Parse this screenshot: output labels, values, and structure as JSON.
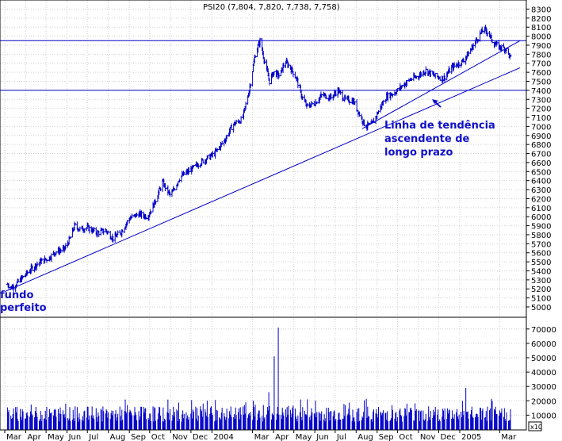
{
  "chart_data": {
    "type": "ohlc_with_volume",
    "title": "PSI20 (7,804, 7,820, 7,738, 7,758)",
    "colors": {
      "price": "#0000c8",
      "volume": "#0000c8",
      "annotation": "#1010c8",
      "lines": "#0000c8"
    },
    "x_ticks": [
      "Mar",
      "Apr",
      "May",
      "Jun",
      "Jul",
      "Aug",
      "Sep",
      "Oct",
      "Nov",
      "Dec",
      "2004",
      "Mar",
      "Apr",
      "May",
      "Jun",
      "Jul",
      "Aug",
      "Sep",
      "Oct",
      "Nov",
      "Dec",
      "2005",
      "Mar"
    ],
    "x_tick_dates": [
      "2003-03-01",
      "2003-04-01",
      "2003-05-01",
      "2003-06-01",
      "2003-07-01",
      "2003-08-01",
      "2003-09-01",
      "2003-10-01",
      "2003-11-01",
      "2003-12-01",
      "2004-01-01",
      "2004-03-01",
      "2004-04-01",
      "2004-05-01",
      "2004-06-01",
      "2004-07-01",
      "2004-08-01",
      "2004-09-01",
      "2004-10-01",
      "2004-11-01",
      "2004-12-01",
      "2005-01-01",
      "2005-03-01"
    ],
    "x_range": [
      "2003-03-01",
      "2005-03-31"
    ],
    "price_axis": {
      "ylim": [
        5000,
        8300
      ],
      "ticks": [
        5000,
        5100,
        5200,
        5300,
        5400,
        5500,
        5600,
        5700,
        5800,
        5900,
        6000,
        6100,
        6200,
        6300,
        6400,
        6500,
        6600,
        6700,
        6800,
        6900,
        7000,
        7100,
        7200,
        7300,
        7400,
        7500,
        7600,
        7700,
        7800,
        7900,
        8000,
        8100,
        8200,
        8300
      ]
    },
    "volume_axis": {
      "ylim": [
        0,
        75000
      ],
      "ticks": [
        10000,
        20000,
        30000,
        40000,
        50000,
        60000,
        70000
      ],
      "scale_label": "x10"
    },
    "price_path": [
      {
        "date": "2003-03-05",
        "close": 5250
      },
      {
        "date": "2003-03-12",
        "close": 5215
      },
      {
        "date": "2003-03-20",
        "close": 5270
      },
      {
        "date": "2003-04-01",
        "close": 5360
      },
      {
        "date": "2003-04-10",
        "close": 5430
      },
      {
        "date": "2003-04-22",
        "close": 5500
      },
      {
        "date": "2003-05-05",
        "close": 5540
      },
      {
        "date": "2003-05-15",
        "close": 5610
      },
      {
        "date": "2003-05-28",
        "close": 5640
      },
      {
        "date": "2003-06-05",
        "close": 5750
      },
      {
        "date": "2003-06-12",
        "close": 5900
      },
      {
        "date": "2003-06-20",
        "close": 5860
      },
      {
        "date": "2003-07-01",
        "close": 5880
      },
      {
        "date": "2003-07-15",
        "close": 5820
      },
      {
        "date": "2003-07-28",
        "close": 5850
      },
      {
        "date": "2003-08-08",
        "close": 5760
      },
      {
        "date": "2003-08-20",
        "close": 5830
      },
      {
        "date": "2003-09-01",
        "close": 5980
      },
      {
        "date": "2003-09-15",
        "close": 6030
      },
      {
        "date": "2003-09-28",
        "close": 6000
      },
      {
        "date": "2003-10-08",
        "close": 6150
      },
      {
        "date": "2003-10-20",
        "close": 6380
      },
      {
        "date": "2003-11-01",
        "close": 6230
      },
      {
        "date": "2003-11-15",
        "close": 6440
      },
      {
        "date": "2003-12-01",
        "close": 6520
      },
      {
        "date": "2003-12-15",
        "close": 6600
      },
      {
        "date": "2004-01-05",
        "close": 6700
      },
      {
        "date": "2004-01-20",
        "close": 6850
      },
      {
        "date": "2004-02-01",
        "close": 7020
      },
      {
        "date": "2004-02-15",
        "close": 7080
      },
      {
        "date": "2004-02-25",
        "close": 7400
      },
      {
        "date": "2004-03-05",
        "close": 7800
      },
      {
        "date": "2004-03-12",
        "close": 7950
      },
      {
        "date": "2004-03-20",
        "close": 7680
      },
      {
        "date": "2004-03-26",
        "close": 7500
      },
      {
        "date": "2004-04-01",
        "close": 7600
      },
      {
        "date": "2004-04-10",
        "close": 7560
      },
      {
        "date": "2004-04-18",
        "close": 7720
      },
      {
        "date": "2004-04-26",
        "close": 7650
      },
      {
        "date": "2004-05-05",
        "close": 7530
      },
      {
        "date": "2004-05-12",
        "close": 7350
      },
      {
        "date": "2004-05-20",
        "close": 7220
      },
      {
        "date": "2004-06-01",
        "close": 7260
      },
      {
        "date": "2004-06-12",
        "close": 7350
      },
      {
        "date": "2004-06-25",
        "close": 7320
      },
      {
        "date": "2004-07-05",
        "close": 7400
      },
      {
        "date": "2004-07-15",
        "close": 7300
      },
      {
        "date": "2004-07-28",
        "close": 7280
      },
      {
        "date": "2004-08-05",
        "close": 7150
      },
      {
        "date": "2004-08-15",
        "close": 7000
      },
      {
        "date": "2004-08-25",
        "close": 7030
      },
      {
        "date": "2004-09-05",
        "close": 7200
      },
      {
        "date": "2004-09-15",
        "close": 7330
      },
      {
        "date": "2004-09-28",
        "close": 7380
      },
      {
        "date": "2004-10-08",
        "close": 7450
      },
      {
        "date": "2004-10-20",
        "close": 7520
      },
      {
        "date": "2004-11-01",
        "close": 7560
      },
      {
        "date": "2004-11-12",
        "close": 7620
      },
      {
        "date": "2004-11-25",
        "close": 7560
      },
      {
        "date": "2004-12-08",
        "close": 7530
      },
      {
        "date": "2004-12-20",
        "close": 7650
      },
      {
        "date": "2005-01-05",
        "close": 7720
      },
      {
        "date": "2005-01-15",
        "close": 7820
      },
      {
        "date": "2005-01-25",
        "close": 7950
      },
      {
        "date": "2005-02-05",
        "close": 8080
      },
      {
        "date": "2005-02-12",
        "close": 8040
      },
      {
        "date": "2005-02-20",
        "close": 7920
      },
      {
        "date": "2005-03-01",
        "close": 7880
      },
      {
        "date": "2005-03-10",
        "close": 7860
      },
      {
        "date": "2005-03-17",
        "close": 7758
      }
    ],
    "volume_bars": {
      "base_level": 12000,
      "spikes": [
        {
          "date": "2004-04-08",
          "value": 71000
        },
        {
          "date": "2004-04-02",
          "value": 51000
        },
        {
          "date": "2004-03-25",
          "value": 26000
        },
        {
          "date": "2004-05-15",
          "value": 22000
        },
        {
          "date": "2004-06-02",
          "value": 20000
        },
        {
          "date": "2005-01-10",
          "value": 29000
        },
        {
          "date": "2004-03-02",
          "value": 20000
        },
        {
          "date": "2004-10-15",
          "value": 18000
        }
      ]
    },
    "horizontal_lines": [
      7950,
      7400
    ],
    "trendlines": [
      {
        "from": {
          "date": "2003-03-01",
          "value": 5170
        },
        "to": {
          "date": "2005-03-31",
          "value": 7650
        }
      },
      {
        "from": {
          "date": "2004-08-10",
          "value": 6975
        },
        "to": {
          "date": "2005-03-31",
          "value": 7950
        }
      }
    ],
    "annotations": [
      {
        "text": "fundo",
        "near": "bottom-left"
      },
      {
        "text": "perfeito",
        "near": "bottom-left"
      },
      {
        "text": "Linha de tendência",
        "near": "mid-right"
      },
      {
        "text": "ascendente de",
        "near": "mid-right"
      },
      {
        "text": "longo prazo",
        "near": "mid-right"
      }
    ]
  }
}
